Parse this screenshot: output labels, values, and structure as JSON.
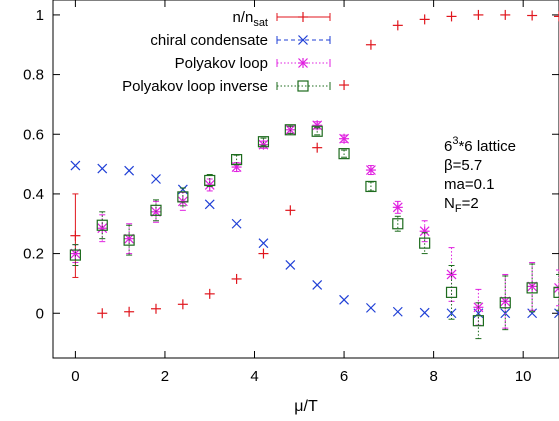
{
  "chart_data": {
    "type": "scatter",
    "xlabel": "μ/T",
    "ylabel": "",
    "xlim": [
      -0.5,
      10.8
    ],
    "ylim": [
      -0.15,
      1.05
    ],
    "xticks": [
      0,
      2,
      4,
      6,
      8,
      10
    ],
    "xtick_labels": [
      "0",
      "2",
      "4",
      "6",
      "8",
      "10"
    ],
    "yticks": [
      0,
      0.2,
      0.4,
      0.6,
      0.8,
      1
    ],
    "ytick_labels": [
      "0",
      "0.2",
      "0.4",
      "0.6",
      "0.8",
      "1"
    ],
    "grid": false,
    "legend_position": "top-left",
    "series": [
      {
        "key": "nsat",
        "label_main": "n/n",
        "label_sub": "sat",
        "color": "#e0161d",
        "marker": "plus",
        "line": "solid",
        "points": [
          {
            "x": 0,
            "y": 0.26,
            "err": 0.14
          },
          {
            "x": 0.6,
            "y": 0.0
          },
          {
            "x": 1.2,
            "y": 0.005
          },
          {
            "x": 1.8,
            "y": 0.015
          },
          {
            "x": 2.4,
            "y": 0.03
          },
          {
            "x": 3.0,
            "y": 0.065
          },
          {
            "x": 3.6,
            "y": 0.115
          },
          {
            "x": 4.2,
            "y": 0.2
          },
          {
            "x": 4.8,
            "y": 0.345
          },
          {
            "x": 5.4,
            "y": 0.555
          },
          {
            "x": 6.0,
            "y": 0.765
          },
          {
            "x": 6.6,
            "y": 0.9
          },
          {
            "x": 7.2,
            "y": 0.965
          },
          {
            "x": 7.8,
            "y": 0.985
          },
          {
            "x": 8.4,
            "y": 0.995
          },
          {
            "x": 9.0,
            "y": 1.0
          },
          {
            "x": 9.6,
            "y": 1.0
          },
          {
            "x": 10.2,
            "y": 0.998
          },
          {
            "x": 10.8,
            "y": 0.995
          }
        ]
      },
      {
        "key": "chiral",
        "label_main": "chiral condensate",
        "label_sub": "",
        "color": "#1f3fd6",
        "marker": "cross",
        "line": "dashed",
        "points": [
          {
            "x": 0,
            "y": 0.495
          },
          {
            "x": 0.6,
            "y": 0.485
          },
          {
            "x": 1.2,
            "y": 0.478
          },
          {
            "x": 1.8,
            "y": 0.45
          },
          {
            "x": 2.4,
            "y": 0.415
          },
          {
            "x": 3.0,
            "y": 0.365
          },
          {
            "x": 3.6,
            "y": 0.3
          },
          {
            "x": 4.2,
            "y": 0.235
          },
          {
            "x": 4.8,
            "y": 0.162
          },
          {
            "x": 5.4,
            "y": 0.095
          },
          {
            "x": 6.0,
            "y": 0.045
          },
          {
            "x": 6.6,
            "y": 0.018
          },
          {
            "x": 7.2,
            "y": 0.005
          },
          {
            "x": 7.8,
            "y": 0.002
          },
          {
            "x": 8.4,
            "y": 0.0
          },
          {
            "x": 9.0,
            "y": 0.0
          },
          {
            "x": 9.6,
            "y": 0.0
          },
          {
            "x": 10.2,
            "y": 0.0
          },
          {
            "x": 10.8,
            "y": 0.0
          }
        ]
      },
      {
        "key": "poly",
        "label_main": "Polyakov loop",
        "label_sub": "",
        "color": "#e020e0",
        "marker": "star",
        "line": "dotted",
        "points": [
          {
            "x": 0,
            "y": 0.2,
            "err": 0.03
          },
          {
            "x": 0.6,
            "y": 0.285,
            "err": 0.045
          },
          {
            "x": 1.2,
            "y": 0.25,
            "err": 0.05
          },
          {
            "x": 1.8,
            "y": 0.34,
            "err": 0.035
          },
          {
            "x": 2.4,
            "y": 0.375,
            "err": 0.03
          },
          {
            "x": 3.0,
            "y": 0.43,
            "err": 0.02
          },
          {
            "x": 3.6,
            "y": 0.49,
            "err": 0.015
          },
          {
            "x": 4.2,
            "y": 0.565,
            "err": 0.012
          },
          {
            "x": 4.8,
            "y": 0.615,
            "err": 0.012
          },
          {
            "x": 5.4,
            "y": 0.63,
            "err": 0.012
          },
          {
            "x": 6.0,
            "y": 0.585,
            "err": 0.012
          },
          {
            "x": 6.6,
            "y": 0.48,
            "err": 0.015
          },
          {
            "x": 7.2,
            "y": 0.355,
            "err": 0.02
          },
          {
            "x": 7.8,
            "y": 0.275,
            "err": 0.035
          },
          {
            "x": 8.4,
            "y": 0.13,
            "err": 0.09
          },
          {
            "x": 9.0,
            "y": 0.02,
            "err": 0.06
          },
          {
            "x": 9.6,
            "y": 0.04,
            "err": 0.09
          },
          {
            "x": 10.2,
            "y": 0.09,
            "err": 0.08
          },
          {
            "x": 10.8,
            "y": 0.085,
            "err": 0.06
          }
        ]
      },
      {
        "key": "polyinv",
        "label_main": "Polyakov loop inverse",
        "label_sub": "",
        "color": "#1d6b1d",
        "marker": "square",
        "line": "dotted",
        "points": [
          {
            "x": 0,
            "y": 0.195,
            "err": 0.035
          },
          {
            "x": 0.6,
            "y": 0.295,
            "err": 0.045
          },
          {
            "x": 1.2,
            "y": 0.245,
            "err": 0.05
          },
          {
            "x": 1.8,
            "y": 0.345,
            "err": 0.035
          },
          {
            "x": 2.4,
            "y": 0.39,
            "err": 0.03
          },
          {
            "x": 3.0,
            "y": 0.445,
            "err": 0.02
          },
          {
            "x": 3.6,
            "y": 0.515,
            "err": 0.015
          },
          {
            "x": 4.2,
            "y": 0.575,
            "err": 0.012
          },
          {
            "x": 4.8,
            "y": 0.615,
            "err": 0.012
          },
          {
            "x": 5.4,
            "y": 0.61,
            "err": 0.012
          },
          {
            "x": 6.0,
            "y": 0.535,
            "err": 0.012
          },
          {
            "x": 6.6,
            "y": 0.425,
            "err": 0.015
          },
          {
            "x": 7.2,
            "y": 0.3,
            "err": 0.025
          },
          {
            "x": 7.8,
            "y": 0.235,
            "err": 0.035
          },
          {
            "x": 8.4,
            "y": 0.07,
            "err": 0.09
          },
          {
            "x": 9.0,
            "y": -0.025,
            "err": 0.06
          },
          {
            "x": 9.6,
            "y": 0.035,
            "err": 0.09
          },
          {
            "x": 10.2,
            "y": 0.085,
            "err": 0.08
          },
          {
            "x": 10.8,
            "y": 0.07,
            "err": 0.06
          }
        ]
      }
    ],
    "annotation": {
      "lattice_base": "6",
      "lattice_sup": "3",
      "lattice_rest": "*6 lattice",
      "beta": "β=5.7",
      "ma": "ma=0.1",
      "nf_main": "N",
      "nf_sub": "F",
      "nf_rest": "=2"
    }
  }
}
